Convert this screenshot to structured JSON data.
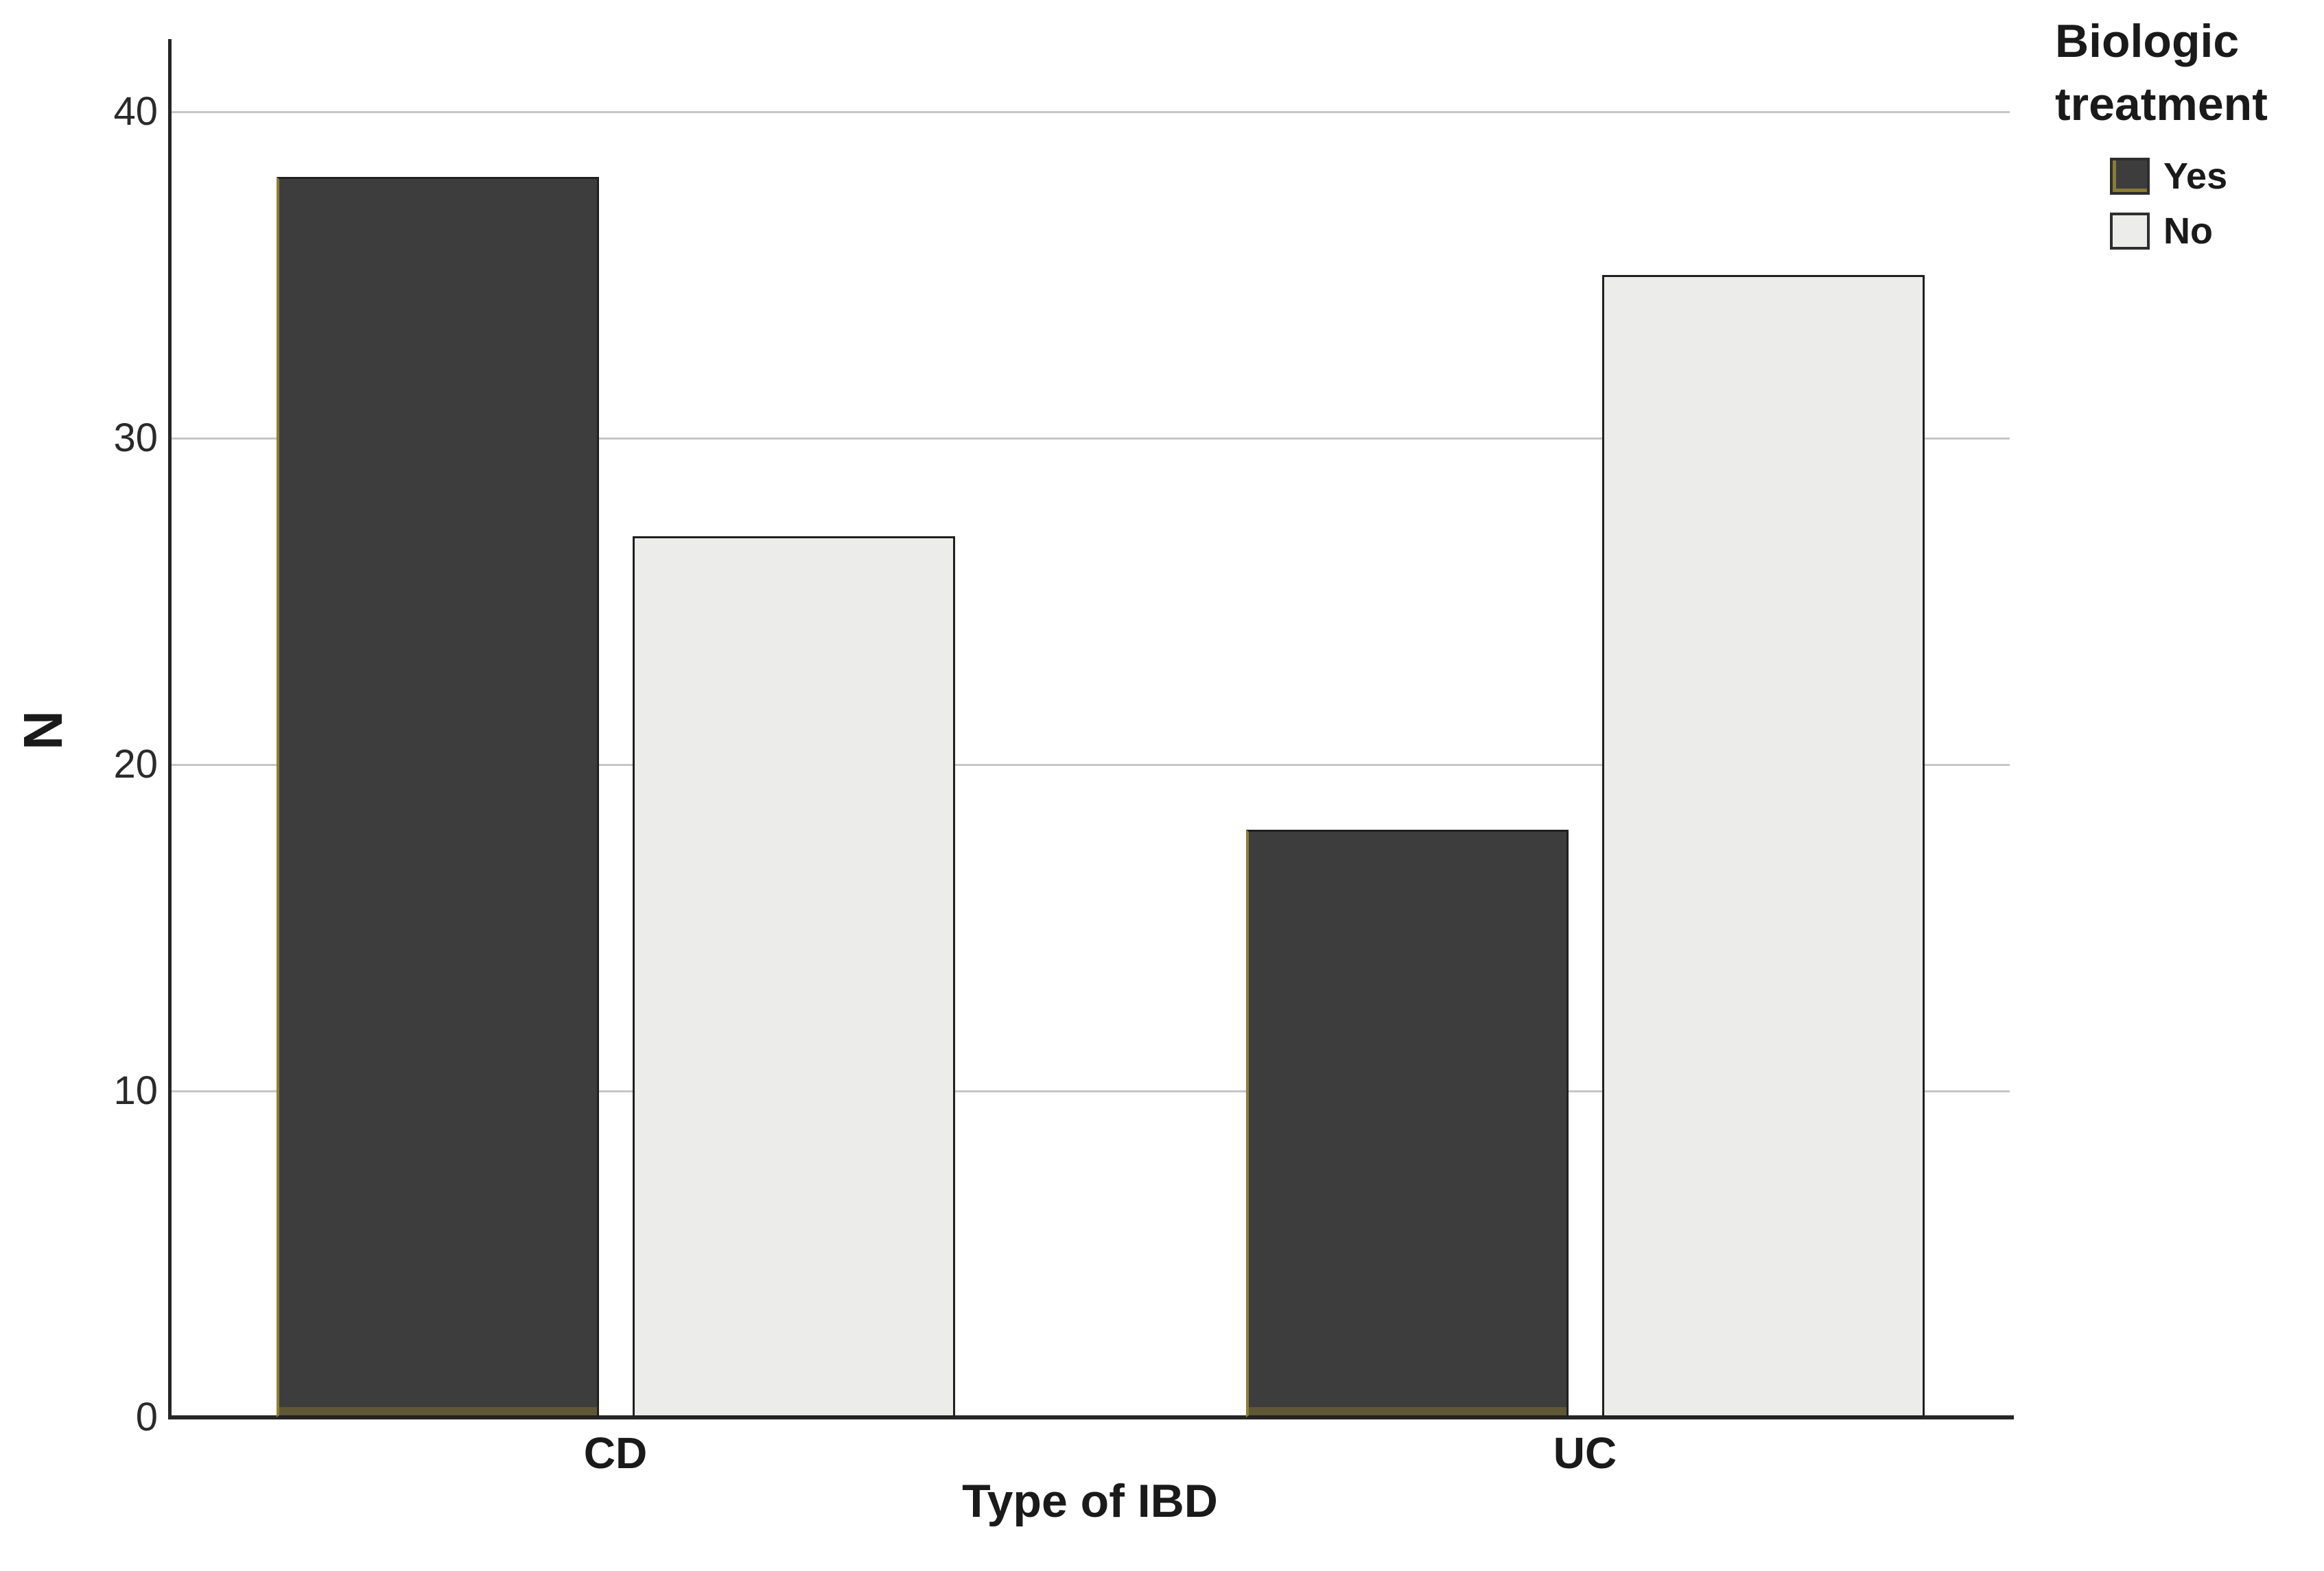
{
  "chart_data": {
    "type": "bar",
    "title": "",
    "categories": [
      "CD",
      "UC"
    ],
    "series": [
      {
        "name": "Yes",
        "values": [
          38,
          18
        ],
        "color": "#3d3d3d"
      },
      {
        "name": "No",
        "values": [
          27,
          35
        ],
        "color": "#ececea"
      }
    ],
    "xlabel": "Type of IBD",
    "ylabel": "N",
    "yticks": [
      0,
      10,
      20,
      30,
      40
    ],
    "ylim": [
      0,
      42
    ],
    "grid": true,
    "legend": {
      "title": "Biologic treatment",
      "position": "top-right",
      "entries": [
        "Yes",
        "No"
      ]
    }
  },
  "colors": {
    "bar_yes": "#3d3d3d",
    "bar_no": "#ececea",
    "bar_border": "#202020",
    "bar_edge_olive": "#8d7f35",
    "gridline": "#c6c6c6",
    "axis": "#262626",
    "text": "#1a1a1a"
  }
}
